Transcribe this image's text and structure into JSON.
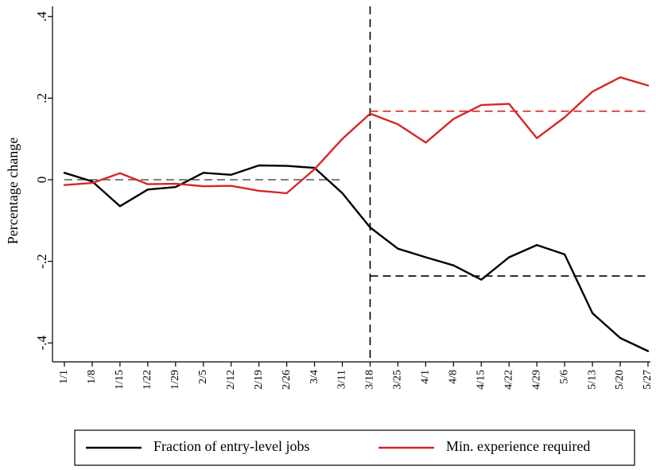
{
  "chart_data": {
    "type": "line",
    "ylabel": "Percentage change",
    "xlabel": "",
    "categories": [
      "1/1",
      "1/8",
      "1/15",
      "1/22",
      "1/29",
      "2/5",
      "2/12",
      "2/19",
      "2/26",
      "3/4",
      "3/11",
      "3/18",
      "3/25",
      "4/1",
      "4/8",
      "4/15",
      "4/22",
      "4/29",
      "5/6",
      "5/13",
      "5/20",
      "5/27"
    ],
    "ylim": [
      -0.45,
      0.42
    ],
    "yticks": [
      0.4,
      0.2,
      0,
      -0.2,
      -0.4
    ],
    "ytick_labels": [
      ".4",
      ".2",
      "0",
      "-.2",
      "-.4"
    ],
    "grid": false,
    "legend_position": "bottom",
    "series": [
      {
        "name": "Fraction of entry-level jobs",
        "color": "#000000",
        "values": [
          0.017,
          -0.004,
          -0.065,
          -0.024,
          -0.018,
          0.017,
          0.012,
          0.035,
          0.034,
          0.029,
          -0.033,
          -0.117,
          -0.169,
          -0.19,
          -0.21,
          -0.245,
          -0.19,
          -0.16,
          -0.183,
          -0.327,
          -0.388,
          -0.42
        ]
      },
      {
        "name": "Min. experience required",
        "color": "#d62728",
        "values": [
          -0.013,
          -0.008,
          0.016,
          -0.011,
          -0.01,
          -0.016,
          -0.015,
          -0.027,
          -0.033,
          0.026,
          0.1,
          0.162,
          0.136,
          0.091,
          0.149,
          0.183,
          0.186,
          0.102,
          0.153,
          0.216,
          0.251,
          0.231
        ]
      }
    ],
    "reference_lines": {
      "vertical_at": "3/18",
      "pre_mean": {
        "from": "1/1",
        "to": "3/11",
        "value": 0.0,
        "color": "#555555"
      },
      "post_means": [
        {
          "from": "3/18",
          "to": "5/27",
          "value": 0.168,
          "color": "#d62728"
        },
        {
          "from": "3/18",
          "to": "5/27",
          "value": -0.236,
          "color": "#000000"
        }
      ]
    }
  }
}
